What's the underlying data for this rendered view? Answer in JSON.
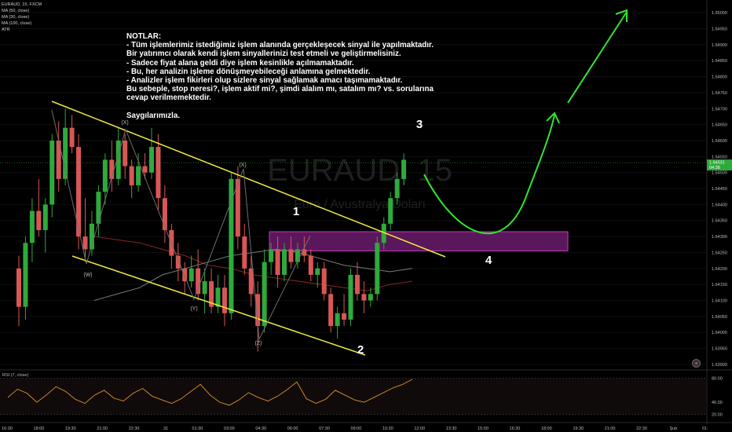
{
  "header": {
    "symbol_line": "EURAUD, 15, FXCM",
    "indicators": [
      "MA (50, close)",
      "MA (30, close)",
      "MA (100, close)",
      "ATR"
    ]
  },
  "notes": {
    "lines": [
      "NOTLAR:",
      "- Tüm işlemlerimiz istediğimiz işlem alanında gerçekleşecek sinyal ile yapılmaktadır.",
      "Bir yatırımcı olarak kendi işlem sinyallerinizi test etmeli ve geliştirmelisiniz.",
      "- Sadece fiyat alana geldi diye işlem kesinlikle açılmamaktadır.",
      "- Bu, her analizin işleme dönüşmeyebileceği anlamına gelmektedir.",
      "- Analizler işlem fikirleri olup sizlere sinyal sağlamak amacı taşımamaktadır.",
      "Bu sebeple, stop neresi?, işlem aktif mi?, şimdi alalım mı, satalım mı? vs. sorularına",
      "cevap verilmemektedir.",
      "",
      "Saygılarımızla."
    ]
  },
  "watermark": {
    "symbol": "EURAUD, 15",
    "name": "Euro / Avustralya Doları"
  },
  "price_tag": {
    "value": "1.64531",
    "countdown": "04:38"
  },
  "rsi_label": "RSI (7, close)",
  "colors": {
    "background": "#000000",
    "bull": "#2eaa3c",
    "bear": "#d95656",
    "channel": "#f2ea3c",
    "zone_fill": "#7a1f7a",
    "zone_border": "#c43cc4",
    "projection": "#2ee62e",
    "rsi_line": "#c8862a",
    "ma_red": "#8b2626",
    "ma_gray": "#7a7a7a"
  },
  "chart_data": [
    {
      "type": "candlestick",
      "series": [
        {
          "name": "EURAUD, 15, FXCM",
          "ohlc": [
            [
              1.642,
              1.6424,
              1.6402,
              1.6408
            ],
            [
              1.6408,
              1.643,
              1.6404,
              1.6428
            ],
            [
              1.6428,
              1.6442,
              1.6422,
              1.6438
            ],
            [
              1.6438,
              1.6448,
              1.643,
              1.6432
            ],
            [
              1.6432,
              1.6442,
              1.6425,
              1.644
            ],
            [
              1.644,
              1.6462,
              1.6436,
              1.646
            ],
            [
              1.646,
              1.6466,
              1.6444,
              1.6448
            ],
            [
              1.6448,
              1.647,
              1.6446,
              1.6464
            ],
            [
              1.6464,
              1.6468,
              1.6456,
              1.6458
            ],
            [
              1.6458,
              1.6462,
              1.6426,
              1.643
            ],
            [
              1.643,
              1.6442,
              1.6422,
              1.6426
            ],
            [
              1.6426,
              1.6438,
              1.6424,
              1.6434
            ],
            [
              1.6434,
              1.6446,
              1.643,
              1.6444
            ],
            [
              1.6444,
              1.6456,
              1.644,
              1.6454
            ],
            [
              1.6454,
              1.646,
              1.6444,
              1.6448
            ],
            [
              1.6448,
              1.6464,
              1.6446,
              1.646
            ],
            [
              1.646,
              1.6462,
              1.6448,
              1.6452
            ],
            [
              1.6452,
              1.6454,
              1.6442,
              1.6446
            ],
            [
              1.6446,
              1.6456,
              1.6444,
              1.6452
            ],
            [
              1.6452,
              1.6456,
              1.6448,
              1.645
            ],
            [
              1.645,
              1.6464,
              1.6448,
              1.6458
            ],
            [
              1.6458,
              1.6462,
              1.6438,
              1.6442
            ],
            [
              1.6442,
              1.6446,
              1.6428,
              1.6432
            ],
            [
              1.6432,
              1.6434,
              1.642,
              1.6424
            ],
            [
              1.6424,
              1.6428,
              1.6416,
              1.642
            ],
            [
              1.642,
              1.6422,
              1.6412,
              1.6416
            ],
            [
              1.6416,
              1.6424,
              1.6414,
              1.642
            ],
            [
              1.642,
              1.6426,
              1.641,
              1.6412
            ],
            [
              1.6412,
              1.642,
              1.6406,
              1.6416
            ],
            [
              1.6416,
              1.642,
              1.6406,
              1.6408
            ],
            [
              1.6408,
              1.6418,
              1.6406,
              1.6414
            ],
            [
              1.6414,
              1.6418,
              1.6402,
              1.6406
            ],
            [
              1.6406,
              1.645,
              1.6404,
              1.6448
            ],
            [
              1.6448,
              1.6452,
              1.6426,
              1.643
            ],
            [
              1.643,
              1.6434,
              1.6418,
              1.642
            ],
            [
              1.642,
              1.6424,
              1.6408,
              1.6412
            ],
            [
              1.6412,
              1.6416,
              1.6394,
              1.6402
            ],
            [
              1.6402,
              1.6426,
              1.64,
              1.6422
            ],
            [
              1.6422,
              1.6428,
              1.6418,
              1.6426
            ],
            [
              1.6426,
              1.643,
              1.6414,
              1.6418
            ],
            [
              1.6418,
              1.6428,
              1.6416,
              1.6426
            ],
            [
              1.6426,
              1.643,
              1.642,
              1.6422
            ],
            [
              1.6422,
              1.6428,
              1.642,
              1.6426
            ],
            [
              1.6426,
              1.643,
              1.6422,
              1.6424
            ],
            [
              1.6424,
              1.6426,
              1.6416,
              1.6418
            ],
            [
              1.6418,
              1.6422,
              1.6414,
              1.642
            ],
            [
              1.642,
              1.6422,
              1.641,
              1.6412
            ],
            [
              1.6412,
              1.6414,
              1.64,
              1.6402
            ],
            [
              1.6402,
              1.6408,
              1.6398,
              1.6406
            ],
            [
              1.6406,
              1.6412,
              1.6402,
              1.6404
            ],
            [
              1.6404,
              1.642,
              1.6402,
              1.6418
            ],
            [
              1.6418,
              1.6422,
              1.641,
              1.6412
            ],
            [
              1.6412,
              1.6416,
              1.6406,
              1.641
            ],
            [
              1.641,
              1.6414,
              1.6408,
              1.6412
            ],
            [
              1.6412,
              1.643,
              1.641,
              1.6428
            ],
            [
              1.6428,
              1.6436,
              1.6426,
              1.6434
            ],
            [
              1.6434,
              1.6444,
              1.6432,
              1.6442
            ],
            [
              1.6442,
              1.645,
              1.644,
              1.6448
            ],
            [
              1.6448,
              1.6456,
              1.6446,
              1.6454
            ]
          ]
        }
      ],
      "ma": [
        {
          "name": "MA (50, close)",
          "values": [
            1.643,
            1.6429,
            1.6428,
            1.6426,
            1.6424,
            1.6421,
            1.642,
            1.6418,
            1.6417,
            1.6416,
            1.6415,
            1.6414,
            1.6413,
            1.6415,
            1.6416
          ]
        },
        {
          "name": "MA (100, close)",
          "values": [
            1.641,
            1.6412,
            1.6414,
            1.6418,
            1.642,
            1.6422,
            1.6424,
            1.6425,
            1.6426,
            1.6425,
            1.6423,
            1.6421,
            1.642,
            1.6419,
            1.642
          ]
        }
      ],
      "y_ticks": [
        "1.65000",
        "1.64950",
        "1.64900",
        "1.64850",
        "1.64800",
        "1.64750",
        "1.64700",
        "1.64650",
        "1.64600",
        "1.64550",
        "1.64500",
        "1.64450",
        "1.64400",
        "1.64350",
        "1.64300",
        "1.64250",
        "1.64200",
        "1.64150",
        "1.64100",
        "1.64050",
        "1.64000",
        "1.63950",
        "1.63900"
      ],
      "x_ticks": [
        "16:30",
        "18:00",
        "19:30",
        "21:00",
        "22:30",
        "31",
        "01:30",
        "03:00",
        "04:30",
        "06:00",
        "07:30",
        "09:00",
        "10:30",
        "12:00",
        "13:30",
        "15:00",
        "16:30",
        "18:00",
        "19:30",
        "21:00",
        "22:30",
        "Şub",
        "01:"
      ],
      "ylim": [
        1.6389,
        1.6502
      ],
      "wave_labels": [
        "(X)",
        "(W)",
        "(Y)",
        "(X)",
        "(Z)"
      ],
      "point_labels": [
        "1",
        "2",
        "3",
        "4"
      ],
      "demand_zone": [
        1.64255,
        1.64315
      ]
    },
    {
      "type": "line",
      "series": [
        {
          "name": "RSI (7, close)",
          "values": [
            48,
            62,
            55,
            40,
            52,
            66,
            58,
            45,
            38,
            52,
            60,
            47,
            42,
            55,
            63,
            50,
            44,
            38,
            46,
            58,
            70,
            52,
            40,
            35,
            44,
            56,
            48,
            42,
            50,
            61,
            74,
            46,
            38,
            45,
            60,
            52,
            44,
            40,
            48,
            56,
            64,
            70,
            78
          ]
        }
      ],
      "y_ticks": [
        "80.00",
        "40.00",
        "20.00"
      ],
      "ylim": [
        10,
        90
      ]
    }
  ]
}
